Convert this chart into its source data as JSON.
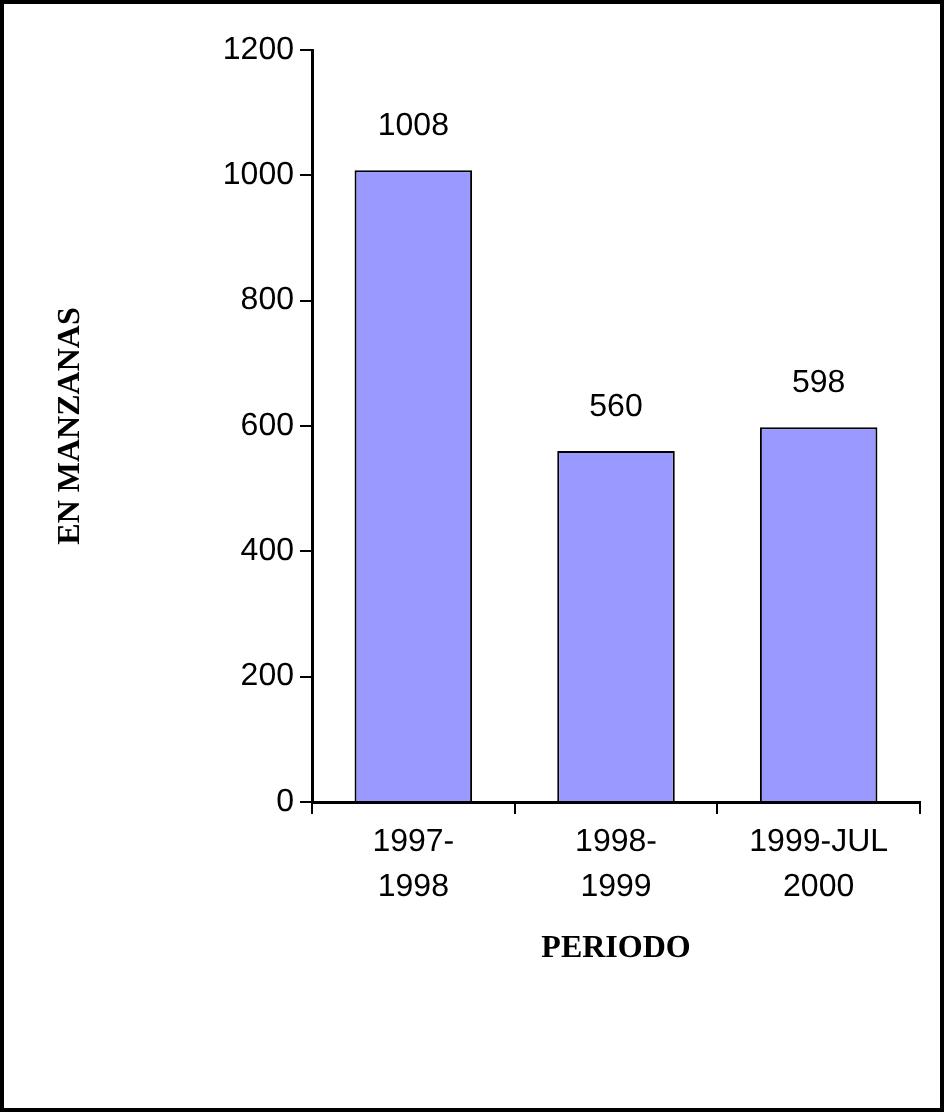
{
  "chart_data": {
    "type": "bar",
    "xlabel": "PERIODO",
    "ylabel": "EN MANZANAS",
    "categories": [
      "1997-1998",
      "1998-1999",
      "1999-JUL 2000"
    ],
    "values": [
      1008,
      560,
      598
    ],
    "color": "#9999ff",
    "ylim": [
      0,
      1200
    ],
    "yticks": [
      0,
      200,
      400,
      600,
      800,
      1000,
      1200
    ],
    "grid": false,
    "data_labels": true,
    "legend": false
  }
}
